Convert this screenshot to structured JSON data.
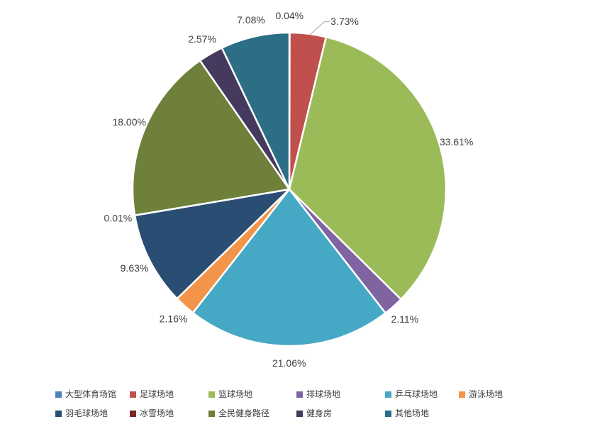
{
  "chart_data": {
    "type": "pie",
    "title": "",
    "legend_position": "bottom",
    "label_format": "percent",
    "slices": [
      {
        "label": "大型体育场馆",
        "value": 0.04,
        "display": "0.04%",
        "color": "#4F81BD"
      },
      {
        "label": "足球场地",
        "value": 3.73,
        "display": "3.73%",
        "color": "#C0504D"
      },
      {
        "label": "篮球场地",
        "value": 33.61,
        "display": "33.61%",
        "color": "#9BBB59"
      },
      {
        "label": "排球场地",
        "value": 2.11,
        "display": "2.11%",
        "color": "#8064A2"
      },
      {
        "label": "乒乓球场地",
        "value": 21.06,
        "display": "21.06%",
        "color": "#45A9C5"
      },
      {
        "label": "游泳场地",
        "value": 2.16,
        "display": "2.16%",
        "color": "#F2954B"
      },
      {
        "label": "羽毛球场地",
        "value": 9.63,
        "display": "9.63%",
        "color": "#2A4D73"
      },
      {
        "label": "冰雪场地",
        "value": 0.01,
        "display": "0.01%",
        "color": "#782723"
      },
      {
        "label": "全民健身路径",
        "value": 18.0,
        "display": "18.00%",
        "color": "#6E803A"
      },
      {
        "label": "健身房",
        "value": 2.57,
        "display": "2.57%",
        "color": "#46395E"
      },
      {
        "label": "其他场地",
        "value": 7.08,
        "display": "7.08%",
        "color": "#2B6E85"
      }
    ]
  }
}
